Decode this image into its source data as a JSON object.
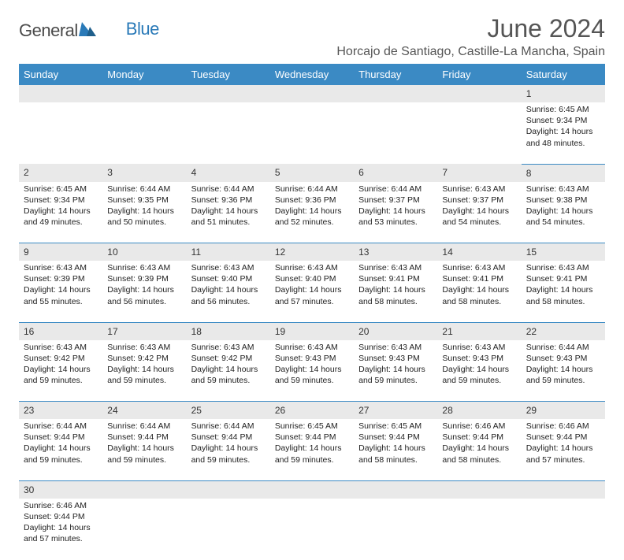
{
  "logo": {
    "text1": "General",
    "text2": "Blue",
    "tri_color": "#2a7ab8"
  },
  "title": "June 2024",
  "location": "Horcajo de Santiago, Castille-La Mancha, Spain",
  "colors": {
    "header_bg": "#3b8ac4",
    "header_text": "#ffffff",
    "daynum_bg": "#e9e9e9",
    "border": "#3b8ac4"
  },
  "weekdays": [
    "Sunday",
    "Monday",
    "Tuesday",
    "Wednesday",
    "Thursday",
    "Friday",
    "Saturday"
  ],
  "weeks": [
    [
      null,
      null,
      null,
      null,
      null,
      null,
      {
        "n": "1",
        "sr": "Sunrise: 6:45 AM",
        "ss": "Sunset: 9:34 PM",
        "d1": "Daylight: 14 hours",
        "d2": "and 48 minutes."
      }
    ],
    [
      {
        "n": "2",
        "sr": "Sunrise: 6:45 AM",
        "ss": "Sunset: 9:34 PM",
        "d1": "Daylight: 14 hours",
        "d2": "and 49 minutes."
      },
      {
        "n": "3",
        "sr": "Sunrise: 6:44 AM",
        "ss": "Sunset: 9:35 PM",
        "d1": "Daylight: 14 hours",
        "d2": "and 50 minutes."
      },
      {
        "n": "4",
        "sr": "Sunrise: 6:44 AM",
        "ss": "Sunset: 9:36 PM",
        "d1": "Daylight: 14 hours",
        "d2": "and 51 minutes."
      },
      {
        "n": "5",
        "sr": "Sunrise: 6:44 AM",
        "ss": "Sunset: 9:36 PM",
        "d1": "Daylight: 14 hours",
        "d2": "and 52 minutes."
      },
      {
        "n": "6",
        "sr": "Sunrise: 6:44 AM",
        "ss": "Sunset: 9:37 PM",
        "d1": "Daylight: 14 hours",
        "d2": "and 53 minutes."
      },
      {
        "n": "7",
        "sr": "Sunrise: 6:43 AM",
        "ss": "Sunset: 9:37 PM",
        "d1": "Daylight: 14 hours",
        "d2": "and 54 minutes."
      },
      {
        "n": "8",
        "sr": "Sunrise: 6:43 AM",
        "ss": "Sunset: 9:38 PM",
        "d1": "Daylight: 14 hours",
        "d2": "and 54 minutes."
      }
    ],
    [
      {
        "n": "9",
        "sr": "Sunrise: 6:43 AM",
        "ss": "Sunset: 9:39 PM",
        "d1": "Daylight: 14 hours",
        "d2": "and 55 minutes."
      },
      {
        "n": "10",
        "sr": "Sunrise: 6:43 AM",
        "ss": "Sunset: 9:39 PM",
        "d1": "Daylight: 14 hours",
        "d2": "and 56 minutes."
      },
      {
        "n": "11",
        "sr": "Sunrise: 6:43 AM",
        "ss": "Sunset: 9:40 PM",
        "d1": "Daylight: 14 hours",
        "d2": "and 56 minutes."
      },
      {
        "n": "12",
        "sr": "Sunrise: 6:43 AM",
        "ss": "Sunset: 9:40 PM",
        "d1": "Daylight: 14 hours",
        "d2": "and 57 minutes."
      },
      {
        "n": "13",
        "sr": "Sunrise: 6:43 AM",
        "ss": "Sunset: 9:41 PM",
        "d1": "Daylight: 14 hours",
        "d2": "and 58 minutes."
      },
      {
        "n": "14",
        "sr": "Sunrise: 6:43 AM",
        "ss": "Sunset: 9:41 PM",
        "d1": "Daylight: 14 hours",
        "d2": "and 58 minutes."
      },
      {
        "n": "15",
        "sr": "Sunrise: 6:43 AM",
        "ss": "Sunset: 9:41 PM",
        "d1": "Daylight: 14 hours",
        "d2": "and 58 minutes."
      }
    ],
    [
      {
        "n": "16",
        "sr": "Sunrise: 6:43 AM",
        "ss": "Sunset: 9:42 PM",
        "d1": "Daylight: 14 hours",
        "d2": "and 59 minutes."
      },
      {
        "n": "17",
        "sr": "Sunrise: 6:43 AM",
        "ss": "Sunset: 9:42 PM",
        "d1": "Daylight: 14 hours",
        "d2": "and 59 minutes."
      },
      {
        "n": "18",
        "sr": "Sunrise: 6:43 AM",
        "ss": "Sunset: 9:42 PM",
        "d1": "Daylight: 14 hours",
        "d2": "and 59 minutes."
      },
      {
        "n": "19",
        "sr": "Sunrise: 6:43 AM",
        "ss": "Sunset: 9:43 PM",
        "d1": "Daylight: 14 hours",
        "d2": "and 59 minutes."
      },
      {
        "n": "20",
        "sr": "Sunrise: 6:43 AM",
        "ss": "Sunset: 9:43 PM",
        "d1": "Daylight: 14 hours",
        "d2": "and 59 minutes."
      },
      {
        "n": "21",
        "sr": "Sunrise: 6:43 AM",
        "ss": "Sunset: 9:43 PM",
        "d1": "Daylight: 14 hours",
        "d2": "and 59 minutes."
      },
      {
        "n": "22",
        "sr": "Sunrise: 6:44 AM",
        "ss": "Sunset: 9:43 PM",
        "d1": "Daylight: 14 hours",
        "d2": "and 59 minutes."
      }
    ],
    [
      {
        "n": "23",
        "sr": "Sunrise: 6:44 AM",
        "ss": "Sunset: 9:44 PM",
        "d1": "Daylight: 14 hours",
        "d2": "and 59 minutes."
      },
      {
        "n": "24",
        "sr": "Sunrise: 6:44 AM",
        "ss": "Sunset: 9:44 PM",
        "d1": "Daylight: 14 hours",
        "d2": "and 59 minutes."
      },
      {
        "n": "25",
        "sr": "Sunrise: 6:44 AM",
        "ss": "Sunset: 9:44 PM",
        "d1": "Daylight: 14 hours",
        "d2": "and 59 minutes."
      },
      {
        "n": "26",
        "sr": "Sunrise: 6:45 AM",
        "ss": "Sunset: 9:44 PM",
        "d1": "Daylight: 14 hours",
        "d2": "and 59 minutes."
      },
      {
        "n": "27",
        "sr": "Sunrise: 6:45 AM",
        "ss": "Sunset: 9:44 PM",
        "d1": "Daylight: 14 hours",
        "d2": "and 58 minutes."
      },
      {
        "n": "28",
        "sr": "Sunrise: 6:46 AM",
        "ss": "Sunset: 9:44 PM",
        "d1": "Daylight: 14 hours",
        "d2": "and 58 minutes."
      },
      {
        "n": "29",
        "sr": "Sunrise: 6:46 AM",
        "ss": "Sunset: 9:44 PM",
        "d1": "Daylight: 14 hours",
        "d2": "and 57 minutes."
      }
    ],
    [
      {
        "n": "30",
        "sr": "Sunrise: 6:46 AM",
        "ss": "Sunset: 9:44 PM",
        "d1": "Daylight: 14 hours",
        "d2": "and 57 minutes."
      },
      null,
      null,
      null,
      null,
      null,
      null
    ]
  ]
}
